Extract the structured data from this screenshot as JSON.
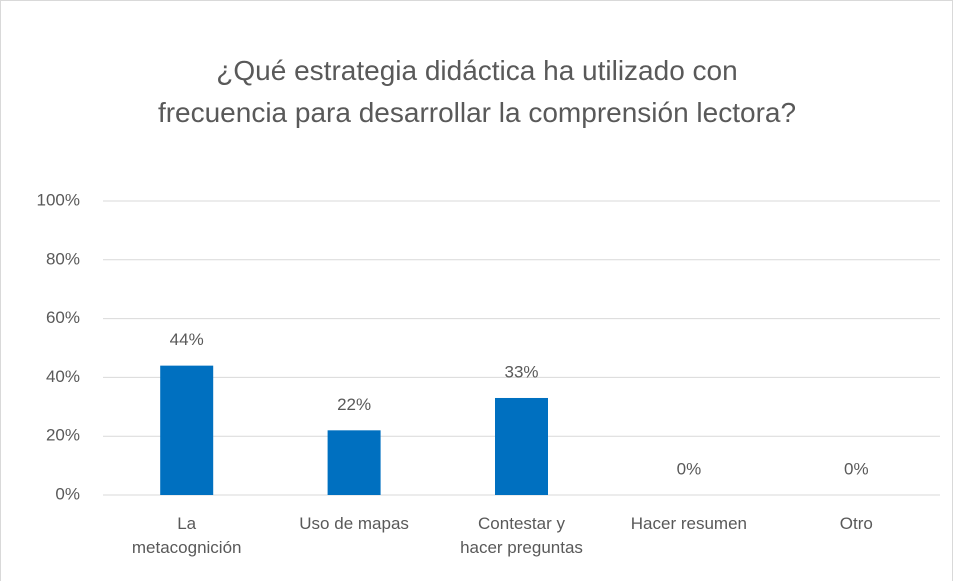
{
  "chart_data": {
    "type": "bar",
    "title": "¿Qué estrategia didáctica ha utilizado con frecuencia para desarrollar la comprensión lectora?",
    "categories": [
      "La metacognición",
      "Uso de mapas",
      "Contestar y hacer preguntas",
      "Hacer resumen",
      "Otro"
    ],
    "values": [
      44,
      22,
      33,
      0,
      0
    ],
    "value_labels": [
      "44%",
      "22%",
      "33%",
      "0%",
      "0%"
    ],
    "color": "#0070c0",
    "ylim": [
      0,
      100
    ],
    "yticks": [
      {
        "value": 0,
        "label": "0%"
      },
      {
        "value": 20,
        "label": "20%"
      },
      {
        "value": 40,
        "label": "40%"
      },
      {
        "value": 60,
        "label": "60%"
      },
      {
        "value": 80,
        "label": "80%"
      },
      {
        "value": 100,
        "label": "100%"
      }
    ],
    "grid": true
  }
}
